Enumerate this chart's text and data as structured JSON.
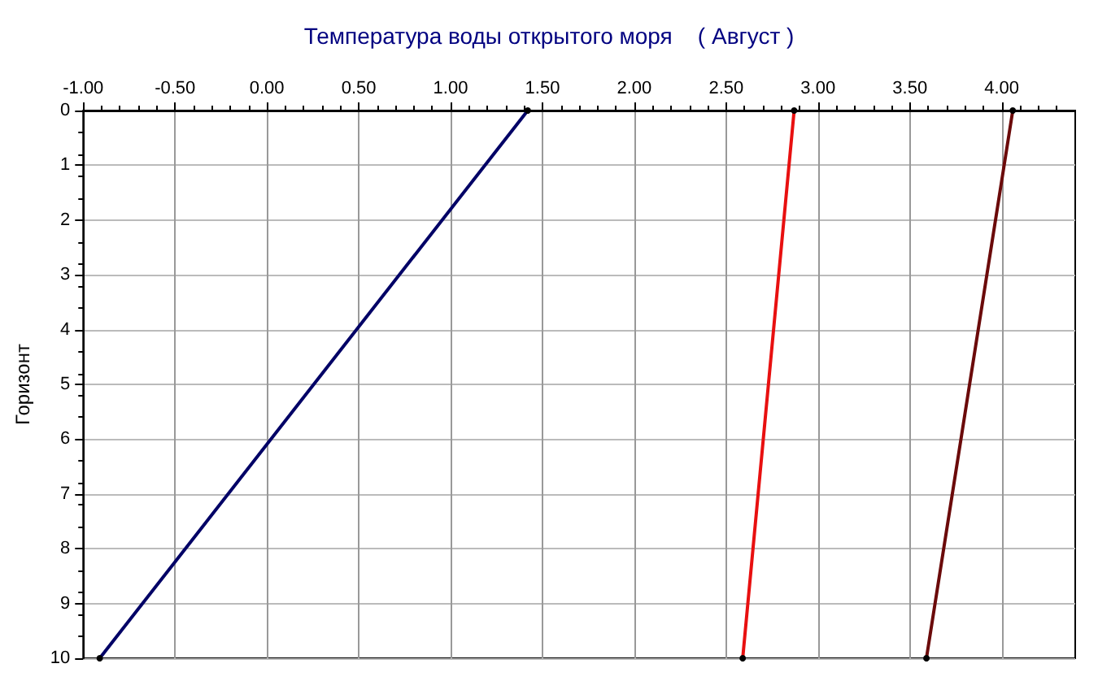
{
  "chart_data": {
    "type": "line",
    "title": "Температура воды открытого моря    ( Август )",
    "ylabel": "Горизонт",
    "series": [
      {
        "color": "#000066",
        "x": [
          1.42,
          -0.91
        ],
        "values": [
          0,
          10
        ]
      },
      {
        "color": "#e81010",
        "x": [
          2.87,
          2.59
        ],
        "values": [
          0,
          10
        ]
      },
      {
        "color": "#6b0a0a",
        "x": [
          4.06,
          3.59
        ],
        "values": [
          0,
          10
        ]
      }
    ],
    "xlim": [
      -1.0,
      4.4
    ],
    "xticks": [
      {
        "value": -1,
        "label": "-1.00"
      },
      {
        "value": -0.5,
        "label": "-0.50"
      },
      {
        "value": 0,
        "label": "0.00"
      },
      {
        "value": 0.5,
        "label": "0.50"
      },
      {
        "value": 1,
        "label": "1.00"
      },
      {
        "value": 1.5,
        "label": "1.50"
      },
      {
        "value": 2,
        "label": "2.00"
      },
      {
        "value": 2.5,
        "label": "2.50"
      },
      {
        "value": 3,
        "label": "3.00"
      },
      {
        "value": 3.5,
        "label": "3.50"
      },
      {
        "value": 4,
        "label": "4.00"
      }
    ],
    "ylim": [
      10,
      0
    ],
    "yticks": [
      0,
      1,
      2,
      3,
      4,
      5,
      6,
      7,
      8,
      9,
      10
    ],
    "grid": true,
    "marker": "circle",
    "line_style": "solid"
  }
}
